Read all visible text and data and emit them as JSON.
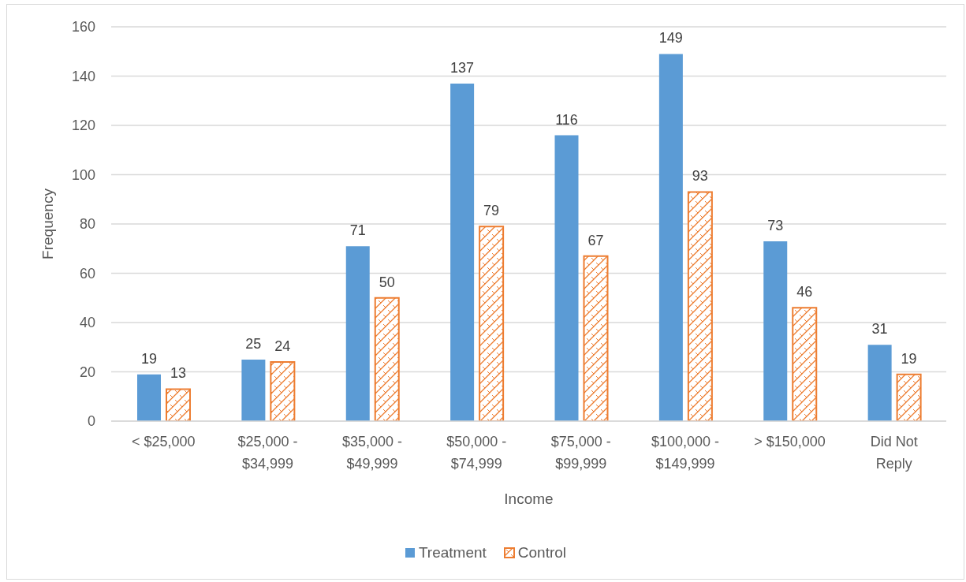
{
  "chart_data": {
    "type": "bar",
    "xlabel": "Income",
    "ylabel": "Frequency",
    "categories": [
      "< $25,000",
      "$25,000 - $34,999",
      "$35,000 - $49,999",
      "$50,000 - $74,999",
      "$75,000 - $99,999",
      "$100,000 - $149,999",
      "> $150,000",
      "Did Not Reply"
    ],
    "series": [
      {
        "name": "Treatment",
        "color": "#5b9bd5",
        "values": [
          19,
          25,
          71,
          137,
          116,
          149,
          73,
          31
        ]
      },
      {
        "name": "Control",
        "color": "#ed7d31",
        "values": [
          13,
          24,
          50,
          79,
          67,
          93,
          46,
          19
        ]
      }
    ],
    "ylim": [
      0,
      160
    ],
    "yticks": [
      0,
      20,
      40,
      60,
      80,
      100,
      120,
      140,
      160
    ],
    "grid": "y",
    "legend": "bottom",
    "data_labels": true
  }
}
